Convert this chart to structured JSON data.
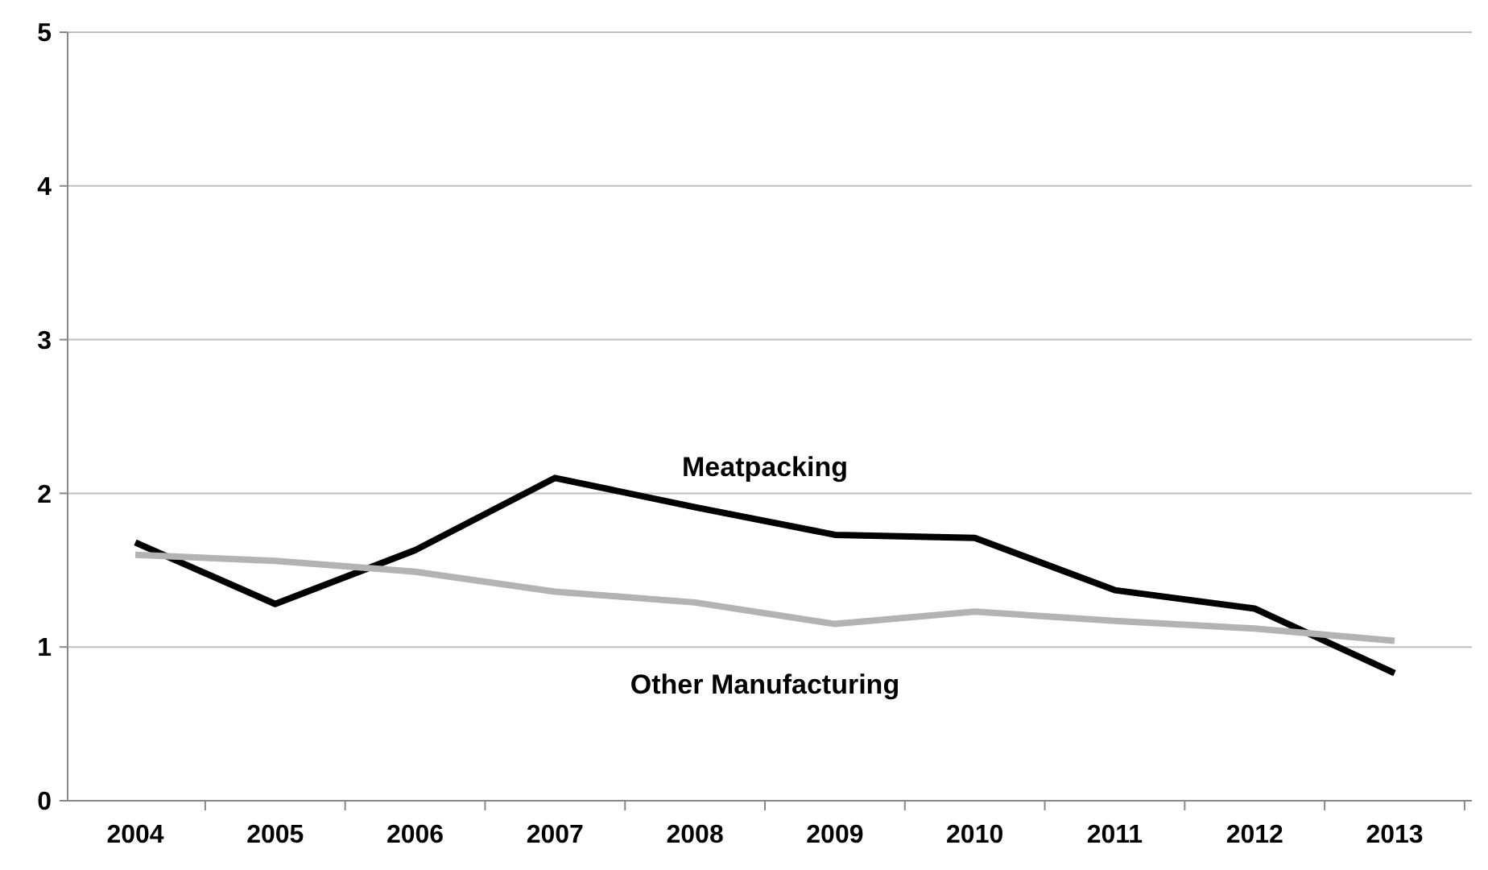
{
  "chart_data": {
    "type": "line",
    "categories": [
      "2004",
      "2005",
      "2006",
      "2007",
      "2008",
      "2009",
      "2010",
      "2011",
      "2012",
      "2013"
    ],
    "series": [
      {
        "name": "Meatpacking",
        "color": "#000000",
        "values": [
          1.68,
          1.28,
          1.63,
          2.1,
          1.91,
          1.73,
          1.71,
          1.37,
          1.25,
          0.83
        ]
      },
      {
        "name": "Other Manufacturing",
        "color": "#b3b3b3",
        "values": [
          1.6,
          1.56,
          1.49,
          1.36,
          1.29,
          1.15,
          1.23,
          1.17,
          1.12,
          1.04
        ]
      }
    ],
    "ylim": [
      0,
      5
    ],
    "yticks": [
      0,
      1,
      2,
      3,
      4,
      5
    ],
    "grid": "y",
    "marker": "none",
    "line_style": "solid"
  }
}
